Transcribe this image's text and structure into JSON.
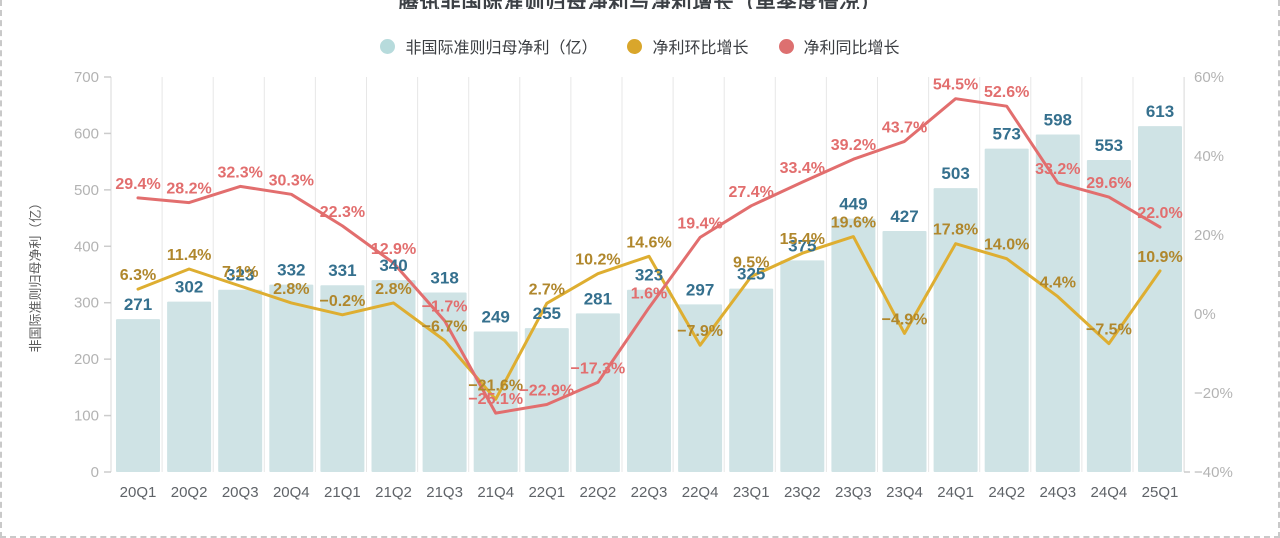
{
  "header": {
    "title_clipped": "腾讯非国际准则归母净利与净利增长（单季度情况）"
  },
  "legend": {
    "items": [
      {
        "label": "非国际准则归母净利（亿）",
        "color": "#b7dbdc"
      },
      {
        "label": "净利环比增长",
        "color": "#d9a62b"
      },
      {
        "label": "净利同比增长",
        "color": "#dd7070"
      }
    ]
  },
  "chart_data": {
    "type": "bar",
    "title": "腾讯非国际准则归母净利与净利增长（单季度情况）",
    "categories": [
      "20Q1",
      "20Q2",
      "20Q3",
      "20Q4",
      "21Q1",
      "21Q2",
      "21Q3",
      "21Q4",
      "22Q1",
      "22Q2",
      "22Q3",
      "22Q4",
      "23Q1",
      "23Q2",
      "23Q3",
      "23Q4",
      "24Q1",
      "24Q2",
      "24Q3",
      "24Q4",
      "25Q1"
    ],
    "series": [
      {
        "name": "非国际准则归母净利（亿）",
        "type": "bar",
        "axis": "left",
        "color": "#cfe3e5",
        "label_color": "#35708e",
        "values": [
          271,
          302,
          323,
          332,
          331,
          340,
          318,
          249,
          255,
          281,
          323,
          297,
          325,
          375,
          449,
          427,
          503,
          573,
          598,
          553,
          613
        ]
      },
      {
        "name": "净利环比增长",
        "type": "line",
        "axis": "right",
        "unit": "%",
        "color": "#deae31",
        "label_color": "#b0872c",
        "values": [
          6.3,
          11.4,
          7.1,
          2.8,
          -0.2,
          2.8,
          -6.7,
          -21.6,
          2.7,
          10.2,
          14.6,
          -7.9,
          9.5,
          15.4,
          19.6,
          -4.9,
          17.8,
          14.0,
          4.4,
          -7.5,
          10.9
        ]
      },
      {
        "name": "净利同比增长",
        "type": "line",
        "axis": "right",
        "unit": "%",
        "color": "#e26e6e",
        "label_color": "#e26e6e",
        "values": [
          29.4,
          28.2,
          32.3,
          30.3,
          22.3,
          12.9,
          -1.7,
          -25.1,
          -22.9,
          -17.3,
          1.6,
          19.4,
          27.4,
          33.4,
          39.2,
          43.7,
          54.5,
          52.6,
          33.2,
          29.6,
          22.0
        ]
      }
    ],
    "left_axis": {
      "label": "非国际准则归母净利（亿）",
      "range": [
        0,
        700
      ],
      "ticks": [
        0,
        100,
        200,
        300,
        400,
        500,
        600,
        700
      ]
    },
    "right_axis": {
      "range": [
        -40,
        60
      ],
      "ticks": [
        -40,
        -20,
        0,
        20,
        40,
        60
      ],
      "unit": "%"
    },
    "grid": "vertical-only",
    "legend_position": "top"
  },
  "colors": {
    "bar_fill": "#cfe3e5",
    "bar_value_label": "#35708e",
    "qoq_line": "#deae31",
    "qoq_label": "#b0872c",
    "yoy_line": "#e26e6e",
    "axis_tick_text": "#b3b3b3",
    "x_tick_text": "#5f6368",
    "gridline": "#e7e7e7",
    "axis_line": "#d8d8d8"
  }
}
